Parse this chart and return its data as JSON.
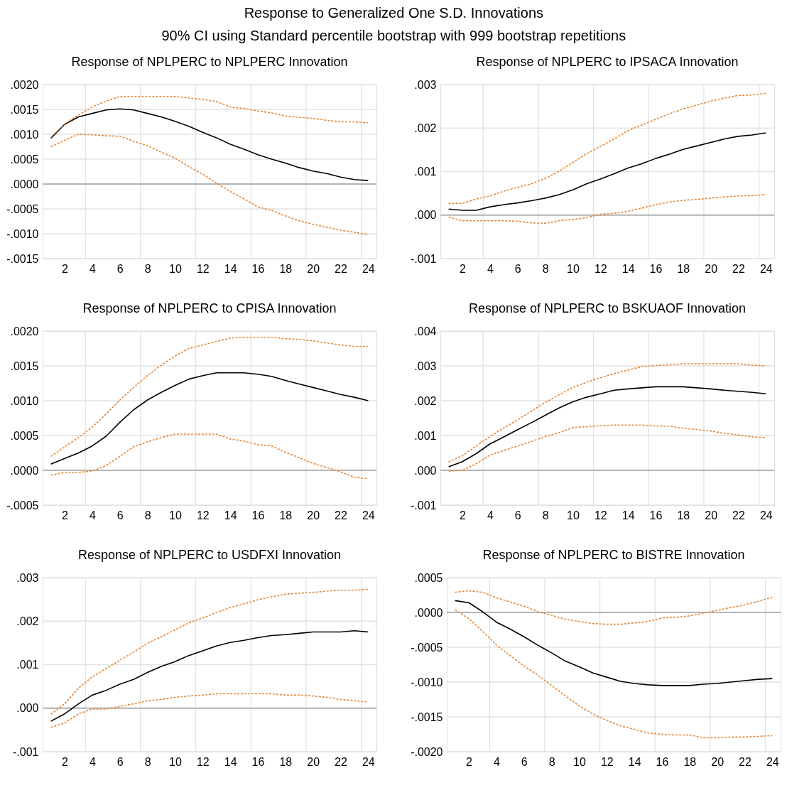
{
  "chart_data": [
    {
      "type": "other",
      "title": "Response to Generalized One S.D. Innovations",
      "subtitle": "90% CI using Standard percentile bootstrap with 999 bootstrap repetitions"
    },
    {
      "type": "line",
      "title": "Response of NPLPERC to NPLPERC Innovation",
      "x": [
        1,
        2,
        3,
        4,
        5,
        6,
        7,
        8,
        9,
        10,
        11,
        12,
        13,
        14,
        15,
        16,
        17,
        18,
        19,
        20,
        21,
        22,
        23,
        24
      ],
      "xlim": [
        0.4,
        24.6
      ],
      "xticks": [
        2,
        {
          "value": 3.5,
          "label": null
        },
        4,
        6,
        {
          "value": 7.5,
          "label": null
        },
        8,
        10,
        {
          "value": 11.5,
          "label": null
        },
        12,
        14,
        {
          "value": 15.5,
          "label": null
        },
        16,
        18,
        {
          "value": 19.5,
          "label": null
        },
        20,
        22,
        {
          "value": 23.5,
          "label": null
        },
        24
      ],
      "ylim": [
        -0.0015,
        0.002
      ],
      "yticks": [
        {
          "value": -0.0015,
          "label": "-.0015"
        },
        {
          "value": -0.001,
          "label": "-.0010"
        },
        {
          "value": -0.0005,
          "label": "-.0005"
        },
        {
          "value": 0,
          "label": ".0000"
        },
        {
          "value": 0.0005,
          "label": ".0005"
        },
        {
          "value": 0.001,
          "label": ".0010"
        },
        {
          "value": 0.0015,
          "label": ".0015"
        },
        {
          "value": 0.002,
          "label": ".0020"
        }
      ],
      "grid": true,
      "ref_lines": [
        {
          "axis": "y",
          "value": 0,
          "color": "#b4b4b4"
        }
      ],
      "series": [
        {
          "color": "#000000",
          "line_style": "solid",
          "values": [
            0.00092,
            0.0012,
            0.00135,
            0.00142,
            0.00149,
            0.00151,
            0.00149,
            0.00142,
            0.00135,
            0.00126,
            0.00116,
            0.00104,
            0.00093,
            0.0008,
            0.0007,
            0.00059,
            0.0005,
            0.00042,
            0.00033,
            0.00026,
            0.00021,
            0.00014,
            9e-05,
            7e-05
          ]
        },
        {
          "color": "#e3883a",
          "line_style": "dashed",
          "values": [
            0.00094,
            0.00121,
            0.00139,
            0.00155,
            0.00167,
            0.00176,
            0.00176,
            0.00176,
            0.00176,
            0.00176,
            0.00173,
            0.0017,
            0.00166,
            0.00155,
            0.00152,
            0.00147,
            0.00143,
            0.00137,
            0.00134,
            0.00132,
            0.00128,
            0.00125,
            0.00125,
            0.00123
          ]
        },
        {
          "color": "#e3883a",
          "line_style": "dashed",
          "values": [
            0.00075,
            0.00088,
            0.001,
            0.00099,
            0.00097,
            0.00096,
            0.00086,
            0.00077,
            0.00064,
            0.00052,
            0.00035,
            0.0002,
            2e-05,
            -0.00015,
            -0.0003,
            -0.00046,
            -0.00053,
            -0.00064,
            -0.00074,
            -0.00081,
            -0.00087,
            -0.00093,
            -0.00097,
            -0.00102
          ]
        }
      ]
    },
    {
      "type": "line",
      "title": "Response of NPLPERC to IPSACA Innovation",
      "x": [
        1,
        2,
        3,
        4,
        5,
        6,
        7,
        8,
        9,
        10,
        11,
        12,
        13,
        14,
        15,
        16,
        17,
        18,
        19,
        20,
        21,
        22,
        23,
        24
      ],
      "xlim": [
        0.4,
        24.6
      ],
      "xticks": [
        2,
        {
          "value": 3.5,
          "label": null
        },
        4,
        6,
        {
          "value": 7.5,
          "label": null
        },
        8,
        10,
        {
          "value": 11.5,
          "label": null
        },
        12,
        14,
        {
          "value": 15.5,
          "label": null
        },
        16,
        18,
        {
          "value": 19.5,
          "label": null
        },
        20,
        22,
        {
          "value": 23.5,
          "label": null
        },
        24
      ],
      "ylim": [
        -0.001,
        0.003
      ],
      "yticks": [
        {
          "value": -0.001,
          "label": "-.001"
        },
        {
          "value": 0,
          "label": ".000"
        },
        {
          "value": 0.001,
          "label": ".001"
        },
        {
          "value": 0.002,
          "label": ".002"
        },
        {
          "value": 0.003,
          "label": ".003"
        }
      ],
      "grid": true,
      "ref_lines": [
        {
          "axis": "y",
          "value": 0,
          "color": "#b4b4b4"
        }
      ],
      "series": [
        {
          "color": "#000000",
          "line_style": "solid",
          "values": [
            0.00014,
            0.00011,
            0.00011,
            0.00019,
            0.00024,
            0.00028,
            0.00033,
            0.00039,
            0.00047,
            0.00058,
            0.00072,
            0.00083,
            0.00095,
            0.00108,
            0.00118,
            0.0013,
            0.0014,
            0.00151,
            0.00159,
            0.00167,
            0.00175,
            0.00181,
            0.00184,
            0.00189
          ]
        },
        {
          "color": "#e3883a",
          "line_style": "dashed",
          "values": [
            0.00027,
            0.00027,
            0.00037,
            0.00044,
            0.00055,
            0.00064,
            0.00072,
            0.00084,
            0.00101,
            0.00121,
            0.00141,
            0.00158,
            0.00175,
            0.00194,
            0.00207,
            0.0022,
            0.00233,
            0.00244,
            0.00253,
            0.00262,
            0.00269,
            0.00275,
            0.00276,
            0.0028
          ]
        },
        {
          "color": "#e3883a",
          "line_style": "dashed",
          "values": [
            -5e-05,
            -0.00013,
            -0.00013,
            -0.00013,
            -0.00013,
            -0.00014,
            -0.00018,
            -0.00019,
            -0.00013,
            -0.0001,
            -6e-05,
            2e-05,
            4e-05,
            9e-05,
            0.00016,
            0.00024,
            0.0003,
            0.00034,
            0.00036,
            0.00039,
            0.00042,
            0.00044,
            0.00045,
            0.00047
          ]
        }
      ]
    },
    {
      "type": "line",
      "title": "Response of NPLPERC to CPISA Innovation",
      "x": [
        1,
        2,
        3,
        4,
        5,
        6,
        7,
        8,
        9,
        10,
        11,
        12,
        13,
        14,
        15,
        16,
        17,
        18,
        19,
        20,
        21,
        22,
        23,
        24
      ],
      "xlim": [
        0.4,
        24.6
      ],
      "xticks": [
        2,
        {
          "value": 3.5,
          "label": null
        },
        4,
        6,
        {
          "value": 7.5,
          "label": null
        },
        8,
        10,
        {
          "value": 11.5,
          "label": null
        },
        12,
        14,
        {
          "value": 15.5,
          "label": null
        },
        16,
        18,
        {
          "value": 19.5,
          "label": null
        },
        20,
        22,
        {
          "value": 23.5,
          "label": null
        },
        24
      ],
      "ylim": [
        -0.0005,
        0.002
      ],
      "yticks": [
        {
          "value": -0.0005,
          "label": "-.0005"
        },
        {
          "value": 0,
          "label": ".0000"
        },
        {
          "value": 0.0005,
          "label": ".0005"
        },
        {
          "value": 0.001,
          "label": ".0010"
        },
        {
          "value": 0.0015,
          "label": ".0015"
        },
        {
          "value": 0.002,
          "label": ".0020"
        }
      ],
      "grid": true,
      "ref_lines": [
        {
          "axis": "y",
          "value": 0,
          "color": "#b4b4b4"
        }
      ],
      "series": [
        {
          "color": "#000000",
          "line_style": "solid",
          "values": [
            9e-05,
            0.00017,
            0.00025,
            0.00035,
            0.00049,
            0.00069,
            0.00087,
            0.00101,
            0.00112,
            0.00122,
            0.00131,
            0.00136,
            0.0014,
            0.0014,
            0.0014,
            0.00138,
            0.00135,
            0.00129,
            0.00124,
            0.00119,
            0.00114,
            0.00109,
            0.00105,
            0.001
          ]
        },
        {
          "color": "#e3883a",
          "line_style": "dashed",
          "values": [
            0.0002,
            0.00034,
            0.00047,
            0.00062,
            0.00081,
            0.00101,
            0.00119,
            0.00136,
            0.00151,
            0.00164,
            0.00175,
            0.0018,
            0.00185,
            0.0019,
            0.00191,
            0.00191,
            0.00191,
            0.00189,
            0.00188,
            0.00186,
            0.00183,
            0.0018,
            0.00178,
            0.00178
          ]
        },
        {
          "color": "#e3883a",
          "line_style": "dashed",
          "values": [
            -7e-05,
            -3e-05,
            -3e-05,
            -1e-05,
            7e-05,
            0.0002,
            0.00034,
            0.00041,
            0.00047,
            0.00052,
            0.00052,
            0.00052,
            0.00052,
            0.00045,
            0.00042,
            0.00037,
            0.00035,
            0.00026,
            0.00018,
            0.0001,
            4e-05,
            -2e-05,
            -0.0001,
            -0.00012
          ]
        }
      ]
    },
    {
      "type": "line",
      "title": "Response of NPLPERC to BSKUAOF Innovation",
      "x": [
        1,
        2,
        3,
        4,
        5,
        6,
        7,
        8,
        9,
        10,
        11,
        12,
        13,
        14,
        15,
        16,
        17,
        18,
        19,
        20,
        21,
        22,
        23,
        24
      ],
      "xlim": [
        0.4,
        24.6
      ],
      "xticks": [
        2,
        {
          "value": 3.5,
          "label": null
        },
        4,
        6,
        {
          "value": 7.5,
          "label": null
        },
        8,
        10,
        {
          "value": 11.5,
          "label": null
        },
        12,
        14,
        {
          "value": 15.5,
          "label": null
        },
        16,
        18,
        {
          "value": 19.5,
          "label": null
        },
        20,
        22,
        {
          "value": 23.5,
          "label": null
        },
        24
      ],
      "ylim": [
        -0.001,
        0.004
      ],
      "yticks": [
        {
          "value": -0.001,
          "label": "-.001"
        },
        {
          "value": 0,
          "label": ".000"
        },
        {
          "value": 0.001,
          "label": ".001"
        },
        {
          "value": 0.002,
          "label": ".002"
        },
        {
          "value": 0.003,
          "label": ".003"
        },
        {
          "value": 0.004,
          "label": ".004"
        }
      ],
      "grid": true,
      "ref_lines": [
        {
          "axis": "y",
          "value": 0,
          "color": "#b4b4b4"
        }
      ],
      "series": [
        {
          "color": "#000000",
          "line_style": "solid",
          "values": [
            0.0001,
            0.00025,
            0.00048,
            0.00076,
            0.00096,
            0.00117,
            0.00137,
            0.00158,
            0.00179,
            0.00197,
            0.0021,
            0.0022,
            0.0023,
            0.00234,
            0.00237,
            0.0024,
            0.0024,
            0.0024,
            0.00237,
            0.00234,
            0.0023,
            0.00227,
            0.00224,
            0.0022
          ]
        },
        {
          "color": "#e3883a",
          "line_style": "dashed",
          "values": [
            0.00024,
            0.00042,
            0.0007,
            0.00097,
            0.00122,
            0.00145,
            0.0017,
            0.00195,
            0.00217,
            0.00238,
            0.00253,
            0.00266,
            0.00278,
            0.00288,
            0.00298,
            0.00301,
            0.00303,
            0.00306,
            0.00306,
            0.00306,
            0.00306,
            0.00306,
            0.00302,
            0.003
          ]
        },
        {
          "color": "#e3883a",
          "line_style": "dashed",
          "values": [
            -2e-05,
            0.0,
            0.00019,
            0.00044,
            0.00057,
            0.0007,
            0.00083,
            0.00097,
            0.00108,
            0.00123,
            0.00125,
            0.00128,
            0.0013,
            0.0013,
            0.0013,
            0.00127,
            0.00127,
            0.00121,
            0.00117,
            0.00113,
            0.00106,
            0.00102,
            0.00096,
            0.00094
          ]
        }
      ]
    },
    {
      "type": "line",
      "title": "Response of NPLPERC to USDFXI Innovation",
      "x": [
        1,
        2,
        3,
        4,
        5,
        6,
        7,
        8,
        9,
        10,
        11,
        12,
        13,
        14,
        15,
        16,
        17,
        18,
        19,
        20,
        21,
        22,
        23,
        24
      ],
      "xlim": [
        0.4,
        24.6
      ],
      "xticks": [
        2,
        {
          "value": 3.5,
          "label": null
        },
        4,
        6,
        {
          "value": 7.5,
          "label": null
        },
        8,
        10,
        {
          "value": 11.5,
          "label": null
        },
        12,
        14,
        {
          "value": 15.5,
          "label": null
        },
        16,
        18,
        {
          "value": 19.5,
          "label": null
        },
        20,
        22,
        {
          "value": 23.5,
          "label": null
        },
        24
      ],
      "ylim": [
        -0.001,
        0.003
      ],
      "yticks": [
        {
          "value": -0.001,
          "label": "-.001"
        },
        {
          "value": 0,
          "label": ".000"
        },
        {
          "value": 0.001,
          "label": ".001"
        },
        {
          "value": 0.002,
          "label": ".002"
        },
        {
          "value": 0.003,
          "label": ".003"
        }
      ],
      "grid": true,
      "ref_lines": [
        {
          "axis": "y",
          "value": 0,
          "color": "#b4b4b4"
        }
      ],
      "series": [
        {
          "color": "#000000",
          "line_style": "solid",
          "values": [
            -0.0003,
            -0.00013,
            0.0001,
            0.0003,
            0.00041,
            0.00055,
            0.00066,
            0.00082,
            0.00096,
            0.00107,
            0.00121,
            0.00132,
            0.00143,
            0.00151,
            0.00156,
            0.00162,
            0.00167,
            0.00169,
            0.00172,
            0.00175,
            0.00175,
            0.00175,
            0.00178,
            0.00175
          ]
        },
        {
          "color": "#e3883a",
          "line_style": "dashed",
          "values": [
            -0.00014,
            0.0001,
            0.00046,
            0.00072,
            0.00091,
            0.0011,
            0.00129,
            0.00149,
            0.00164,
            0.0018,
            0.00196,
            0.00207,
            0.0022,
            0.00231,
            0.0024,
            0.00249,
            0.00256,
            0.00262,
            0.00264,
            0.00266,
            0.00269,
            0.00271,
            0.00271,
            0.00273
          ]
        },
        {
          "color": "#e3883a",
          "line_style": "dashed",
          "values": [
            -0.00044,
            -0.00034,
            -0.00013,
            -2e-05,
            -2e-05,
            4e-05,
            0.0001,
            0.00017,
            0.0002,
            0.00025,
            0.00028,
            0.0003,
            0.00033,
            0.00033,
            0.00033,
            0.00033,
            0.00033,
            0.0003,
            0.0003,
            0.00028,
            0.00025,
            0.0002,
            0.00017,
            0.00014
          ]
        }
      ]
    },
    {
      "type": "line",
      "title": "Response of NPLPERC to BISTRE Innovation",
      "x": [
        1,
        2,
        3,
        4,
        5,
        6,
        7,
        8,
        9,
        10,
        11,
        12,
        13,
        14,
        15,
        16,
        17,
        18,
        19,
        20,
        21,
        22,
        23,
        24
      ],
      "xlim": [
        0.4,
        24.6
      ],
      "xticks": [
        2,
        {
          "value": 3.5,
          "label": null
        },
        4,
        6,
        {
          "value": 7.5,
          "label": null
        },
        8,
        10,
        {
          "value": 11.5,
          "label": null
        },
        12,
        14,
        {
          "value": 15.5,
          "label": null
        },
        16,
        18,
        {
          "value": 19.5,
          "label": null
        },
        20,
        22,
        {
          "value": 23.5,
          "label": null
        },
        24
      ],
      "ylim": [
        -0.002,
        0.0005
      ],
      "yticks": [
        {
          "value": -0.002,
          "label": "-.0020"
        },
        {
          "value": -0.0015,
          "label": "-.0015"
        },
        {
          "value": -0.001,
          "label": "-.0010"
        },
        {
          "value": -0.0005,
          "label": "-.0005"
        },
        {
          "value": 0,
          "label": ".0000"
        },
        {
          "value": 0.0005,
          "label": ".0005"
        }
      ],
      "grid": true,
      "ref_lines": [
        {
          "axis": "y",
          "value": 0,
          "color": "#b4b4b4"
        }
      ],
      "series": [
        {
          "color": "#000000",
          "line_style": "solid",
          "values": [
            0.00017,
            0.00014,
            1e-05,
            -0.00014,
            -0.00024,
            -0.00035,
            -0.00047,
            -0.00058,
            -0.0007,
            -0.00078,
            -0.00087,
            -0.00093,
            -0.00099,
            -0.00102,
            -0.00104,
            -0.00105,
            -0.00105,
            -0.00105,
            -0.00103,
            -0.00102,
            -0.001,
            -0.00098,
            -0.00096,
            -0.00095
          ]
        },
        {
          "color": "#e3883a",
          "line_style": "dashed",
          "values": [
            0.00029,
            0.00031,
            0.00029,
            0.00021,
            0.00015,
            9e-05,
            1e-05,
            -4e-05,
            -0.0001,
            -0.00013,
            -0.00016,
            -0.00017,
            -0.00017,
            -0.00015,
            -0.00013,
            -8e-05,
            -7e-05,
            -5e-05,
            -1e-05,
            3e-05,
            7e-05,
            0.00011,
            0.00016,
            0.00022
          ]
        },
        {
          "color": "#e3883a",
          "line_style": "dashed",
          "values": [
            4e-05,
            -9e-05,
            -0.00027,
            -0.00047,
            -0.00062,
            -0.00077,
            -0.0009,
            -0.00105,
            -0.0012,
            -0.00134,
            -0.00146,
            -0.00155,
            -0.00163,
            -0.00168,
            -0.00173,
            -0.00175,
            -0.00176,
            -0.00176,
            -0.0018,
            -0.0018,
            -0.00179,
            -0.00179,
            -0.00178,
            -0.00177
          ]
        }
      ]
    }
  ]
}
